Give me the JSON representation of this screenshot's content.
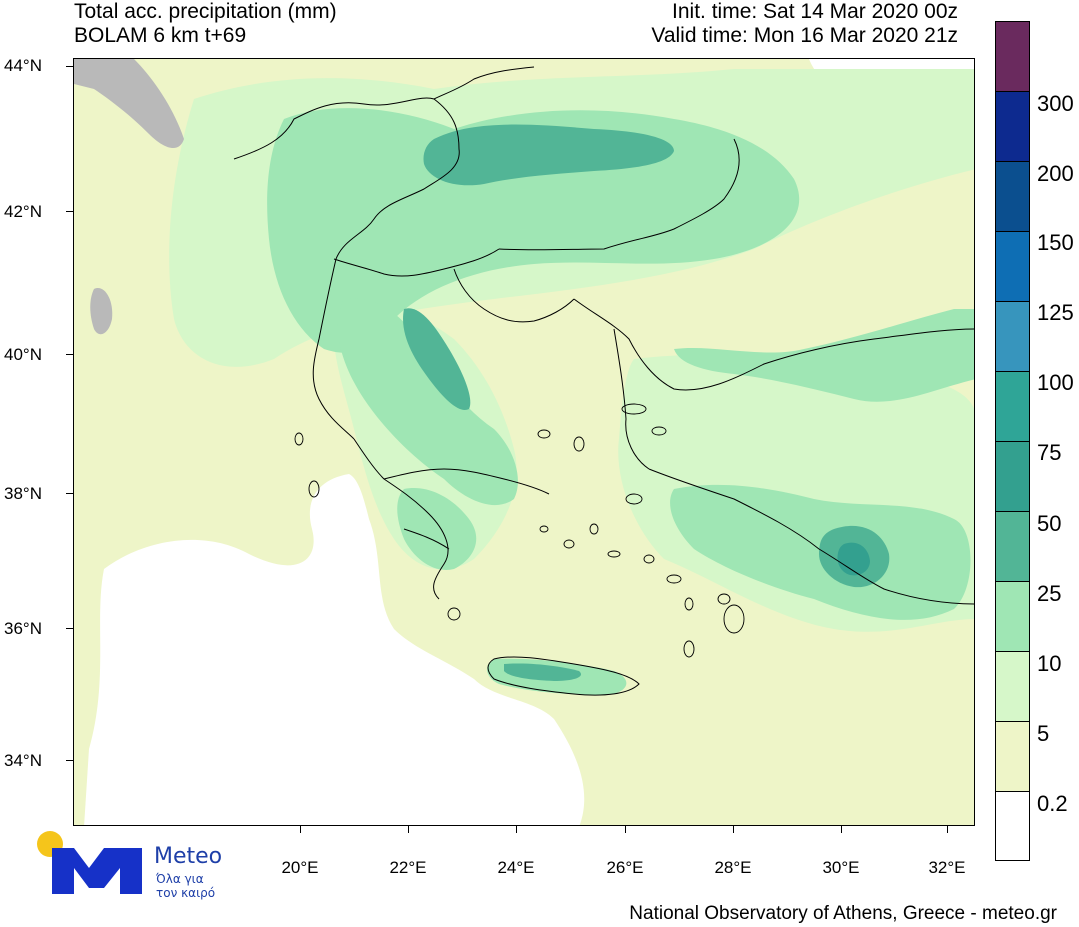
{
  "header": {
    "title_line1": "Total acc. precipitation (mm)",
    "title_line2": "BOLAM 6 km t+69",
    "init_time": "Init. time: Sat 14 Mar 2020 00z",
    "valid_time": "Valid time: Mon 16 Mar 2020 21z"
  },
  "axes": {
    "lat_labels": [
      "44°N",
      "42°N",
      "40°N",
      "38°N",
      "36°N",
      "34°N"
    ],
    "lon_labels": [
      "20°E",
      "22°E",
      "24°E",
      "26°E",
      "28°E",
      "30°E",
      "32°E"
    ]
  },
  "legend": {
    "levels": [
      "300",
      "200",
      "150",
      "125",
      "100",
      "75",
      "50",
      "25",
      "10",
      "5",
      "0.2"
    ],
    "colors": [
      "#6a2a5e",
      "#0d2a8f",
      "#0b4f8f",
      "#0e6eb4",
      "#3795bd",
      "#2fa597",
      "#33a08f",
      "#52b596",
      "#9fe6b4",
      "#d6f7c9",
      "#eef5c8",
      "#ffffff"
    ]
  },
  "map_colors": {
    "sea_dry": "#ffffff",
    "light": "#eef5c8",
    "green_pale": "#d6f7c9",
    "green": "#9fe6b4",
    "green_mid": "#52b596",
    "green_dark": "#33a08f",
    "land_mask": "#b9b9b9"
  },
  "logo": {
    "brand": "Meteo",
    "tagline_line1": "Όλα για",
    "tagline_line2": "τον καιρό",
    "sun_color": "#f5c51b",
    "m_color": "#1631c8"
  },
  "footer": {
    "credit": "National Observatory of Athens, Greece - meteo.gr"
  }
}
